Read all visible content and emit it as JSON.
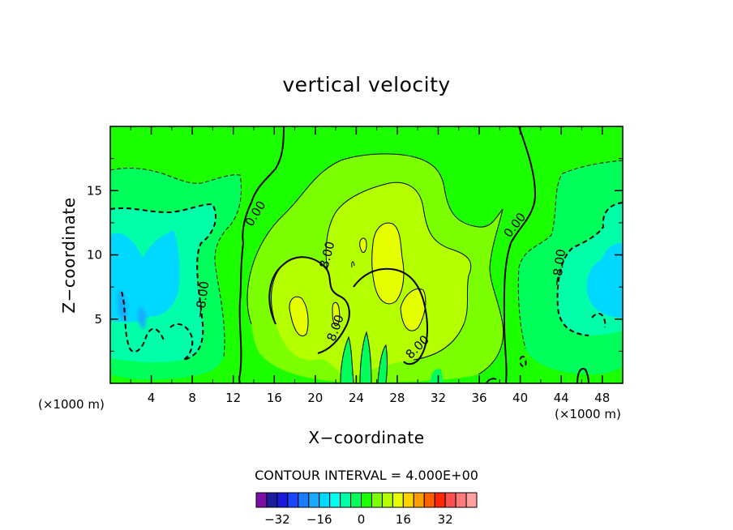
{
  "chart_data": {
    "type": "contour",
    "title": "vertical velocity",
    "xlabel": "X−coordinate",
    "ylabel": "Z−coordinate",
    "x_unit_left": "(×1000 m)",
    "x_unit_right": "(×1000 m)",
    "xlim": [
      0,
      50
    ],
    "ylim": [
      0,
      20
    ],
    "x_ticks": [
      4,
      8,
      12,
      16,
      20,
      24,
      28,
      32,
      36,
      40,
      44,
      48
    ],
    "x_tick_labels": [
      "4",
      "8",
      "12",
      "16",
      "20",
      "24",
      "28",
      "32",
      "36",
      "40",
      "44",
      "48"
    ],
    "y_ticks": [
      5,
      10,
      15
    ],
    "y_tick_labels": [
      "5",
      "10",
      "15"
    ],
    "contour_interval_text": "CONTOUR INTERVAL = 4.000E+00",
    "contour_labels": [
      {
        "text": "0.00",
        "x": 14.2,
        "y": 13.2,
        "angle": -58
      },
      {
        "text": "8.00",
        "x": 21.2,
        "y": 10.0,
        "angle": -75
      },
      {
        "text": "−8.00",
        "x": 9.0,
        "y": 6.5,
        "angle": -82
      },
      {
        "text": "8.00",
        "x": 22.0,
        "y": 4.3,
        "angle": -70
      },
      {
        "text": "8.00",
        "x": 30.0,
        "y": 2.8,
        "angle": -45
      },
      {
        "text": "0.00",
        "x": 39.5,
        "y": 12.3,
        "angle": -52
      },
      {
        "text": "−8.00",
        "x": 43.8,
        "y": 9.0,
        "angle": -82
      }
    ],
    "colorbar": {
      "levels": [
        -36,
        -32,
        -28,
        -24,
        -20,
        -16,
        -12,
        -8,
        -4,
        0,
        4,
        8,
        12,
        16,
        20,
        24,
        28,
        32,
        36
      ],
      "colors": [
        "#7b0fa8",
        "#1c1c9c",
        "#1a1adc",
        "#1b46ff",
        "#1a7cff",
        "#18aaff",
        "#00d8ff",
        "#00fff0",
        "#00ffa8",
        "#00ff5a",
        "#1cff00",
        "#7cff00",
        "#b4ff00",
        "#e6ff00",
        "#ffd200",
        "#ff9e00",
        "#ff6000",
        "#ff2800",
        "#ff5050",
        "#ff7a7a",
        "#ffa0a0"
      ],
      "tick_values": [
        -32,
        -16,
        0,
        16,
        32
      ],
      "tick_labels": [
        "−32",
        "−16",
        "0",
        "16",
        "32"
      ]
    }
  }
}
